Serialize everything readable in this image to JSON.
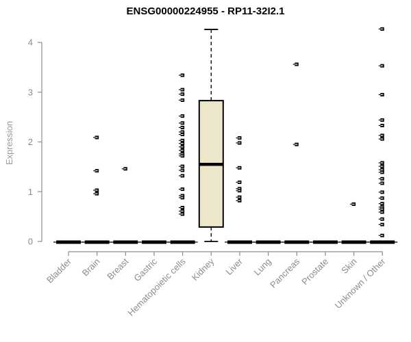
{
  "chart_data": {
    "type": "boxplot",
    "title": "ENSG00000224955 - RP11-32I2.1",
    "ylabel": "Expression",
    "xlabel": "",
    "ylim": [
      0,
      4.3
    ],
    "y_ticks": [
      0,
      1,
      2,
      3,
      4
    ],
    "grid": false,
    "legend": "none",
    "categories": [
      "Bladder",
      "Brain",
      "Breast",
      "Gastric",
      "Hematopoietic cells",
      "Kidney",
      "Liver",
      "Lung",
      "Pancreas",
      "Prostate",
      "Skin",
      "Unknown / Other"
    ],
    "series": [
      {
        "category": "Bladder",
        "zero_bar": true,
        "points": []
      },
      {
        "category": "Brain",
        "zero_bar": true,
        "points": [
          2.09,
          1.42,
          1.03,
          0.96
        ]
      },
      {
        "category": "Breast",
        "zero_bar": true,
        "points": [
          1.46
        ]
      },
      {
        "category": "Gastric",
        "zero_bar": true,
        "points": []
      },
      {
        "category": "Hematopoietic cells",
        "zero_bar": true,
        "points": [
          3.34,
          3.05,
          2.96,
          2.84,
          2.52,
          2.38,
          2.29,
          2.2,
          2.15,
          2.03,
          1.97,
          1.9,
          1.83,
          1.76,
          1.72,
          1.51,
          1.43,
          1.32,
          1.05,
          0.92,
          0.88,
          0.68,
          0.61,
          0.55
        ]
      },
      {
        "category": "Kidney",
        "zero_bar": false,
        "box": {
          "whisker_high": 4.26,
          "q3": 2.83,
          "median": 1.55,
          "q1": 0.29,
          "whisker_low": 0
        },
        "points": []
      },
      {
        "category": "Liver",
        "zero_bar": true,
        "points": [
          2.08,
          1.98,
          1.48,
          1.19,
          1.06,
          1.02,
          0.89,
          0.82
        ]
      },
      {
        "category": "Lung",
        "zero_bar": true,
        "points": []
      },
      {
        "category": "Pancreas",
        "zero_bar": true,
        "points": [
          3.56,
          1.95
        ]
      },
      {
        "category": "Prostate",
        "zero_bar": true,
        "points": []
      },
      {
        "category": "Skin",
        "zero_bar": true,
        "points": [
          0.75
        ]
      },
      {
        "category": "Unknown / Other",
        "zero_bar": true,
        "points": [
          4.27,
          3.53,
          2.95,
          2.44,
          2.33,
          2.13,
          2.06,
          1.58,
          1.51,
          1.44,
          1.39,
          1.26,
          1.17,
          0.99,
          0.87,
          0.76,
          0.69,
          0.65,
          0.59,
          0.45,
          0.34,
          0.12
        ]
      }
    ],
    "colors": {
      "box_fill": "#ECE6CB",
      "box_stroke": "#000000",
      "median": "#000000",
      "axis": "#8c8c8c",
      "tick_label": "#8c8c8c",
      "title": "#000000",
      "zero_bar": "#000000",
      "point": "#000000",
      "background": "#ffffff"
    }
  }
}
